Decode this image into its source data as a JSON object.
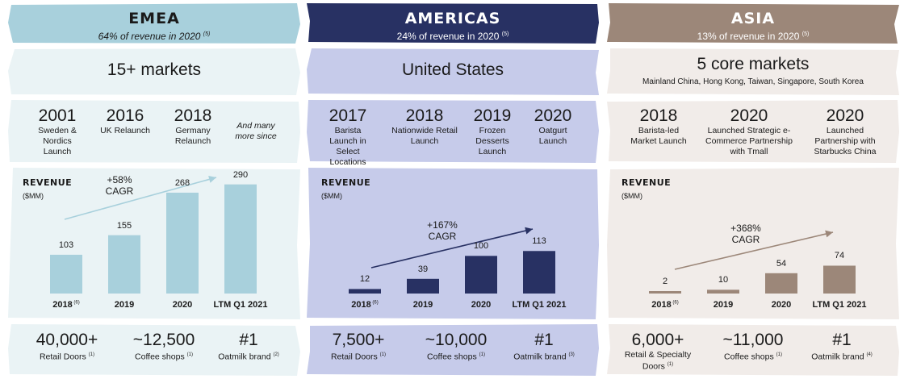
{
  "colors": {
    "emea_banner": "#a8d0dc",
    "emea_panel": "#eaf3f5",
    "emea_bar": "#a8d0dc",
    "americas_banner": "#283163",
    "americas_panel": "#c6cbea",
    "americas_bar": "#283163",
    "asia_banner": "#9c8779",
    "asia_panel": "#f1ece9",
    "asia_bar": "#9c8779"
  },
  "regions": [
    {
      "key": "emea",
      "title": "EMEA",
      "subtitle": "64% of revenue in 2020",
      "subtitle_note": "(5)",
      "markets": "15+ markets",
      "markets_sub": "",
      "timeline": [
        {
          "year": "2001",
          "desc": "Sweden & Nordics Launch"
        },
        {
          "year": "2016",
          "desc": "UK Relaunch"
        },
        {
          "year": "2018",
          "desc": "Germany Relaunch"
        },
        {
          "year": "",
          "desc": "And many more since"
        }
      ],
      "revenue_label": "REVENUE",
      "revenue_unit": "($MM)",
      "cagr": "+58%",
      "cagr_label": "CAGR",
      "stats": [
        {
          "value": "40,000+",
          "label": "Retail Doors",
          "note": "(1)"
        },
        {
          "value": "~12,500",
          "label": "Coffee shops",
          "note": "(1)"
        },
        {
          "value": "#1",
          "label": "Oatmilk brand",
          "note": "(2)"
        }
      ]
    },
    {
      "key": "americas",
      "title": "AMERICAS",
      "subtitle": "24% of revenue in 2020",
      "subtitle_note": "(5)",
      "markets": "United States",
      "markets_sub": "",
      "timeline": [
        {
          "year": "2017",
          "desc": "Barista Launch in Select Locations"
        },
        {
          "year": "2018",
          "desc": "Nationwide Retail Launch"
        },
        {
          "year": "2019",
          "desc": "Frozen Desserts Launch"
        },
        {
          "year": "2020",
          "desc": "Oatgurt Launch"
        }
      ],
      "revenue_label": "REVENUE",
      "revenue_unit": "($MM)",
      "cagr": "+167%",
      "cagr_label": "CAGR",
      "stats": [
        {
          "value": "7,500+",
          "label": "Retail Doors",
          "note": "(1)"
        },
        {
          "value": "~10,000",
          "label": "Coffee shops",
          "note": "(1)"
        },
        {
          "value": "#1",
          "label": "Oatmilk brand",
          "note": "(3)"
        }
      ]
    },
    {
      "key": "asia",
      "title": "ASIA",
      "subtitle": "13% of revenue in 2020",
      "subtitle_note": "(5)",
      "markets": "5 core markets",
      "markets_sub": "Mainland China, Hong Kong, Taiwan, Singapore, South Korea",
      "timeline": [
        {
          "year": "2018",
          "desc": "Barista-led Market Launch"
        },
        {
          "year": "2020",
          "desc": "Launched Strategic e-Commerce Partnership with Tmall"
        },
        {
          "year": "2020",
          "desc": "Launched Partnership with Starbucks China"
        }
      ],
      "revenue_label": "REVENUE",
      "revenue_unit": "($MM)",
      "cagr": "+368%",
      "cagr_label": "CAGR",
      "stats": [
        {
          "value": "6,000+",
          "label": "Retail & Specialty Doors",
          "note": "(1)"
        },
        {
          "value": "~11,000",
          "label": "Coffee shops",
          "note": "(1)"
        },
        {
          "value": "#1",
          "label": "Oatmilk brand",
          "note": "(4)"
        }
      ]
    }
  ],
  "chart_data": [
    {
      "type": "bar",
      "title": "EMEA REVENUE",
      "ylabel": "($MM)",
      "categories": [
        "2018",
        "2019",
        "2020",
        "LTM Q1 2021"
      ],
      "category_notes": [
        "(6)",
        "",
        "",
        ""
      ],
      "values": [
        103,
        155,
        268,
        290
      ],
      "annotation": "+58% CAGR",
      "ylim": [
        0,
        300
      ]
    },
    {
      "type": "bar",
      "title": "AMERICAS REVENUE",
      "ylabel": "($MM)",
      "categories": [
        "2018",
        "2019",
        "2020",
        "LTM Q1 2021"
      ],
      "category_notes": [
        "(6)",
        "",
        "",
        ""
      ],
      "values": [
        12,
        39,
        100,
        113
      ],
      "annotation": "+167% CAGR",
      "ylim": [
        0,
        300
      ]
    },
    {
      "type": "bar",
      "title": "ASIA REVENUE",
      "ylabel": "($MM)",
      "categories": [
        "2018",
        "2019",
        "2020",
        "LTM Q1 2021"
      ],
      "category_notes": [
        "(6)",
        "",
        "",
        ""
      ],
      "values": [
        2,
        10,
        54,
        74
      ],
      "annotation": "+368% CAGR",
      "ylim": [
        0,
        300
      ]
    }
  ]
}
